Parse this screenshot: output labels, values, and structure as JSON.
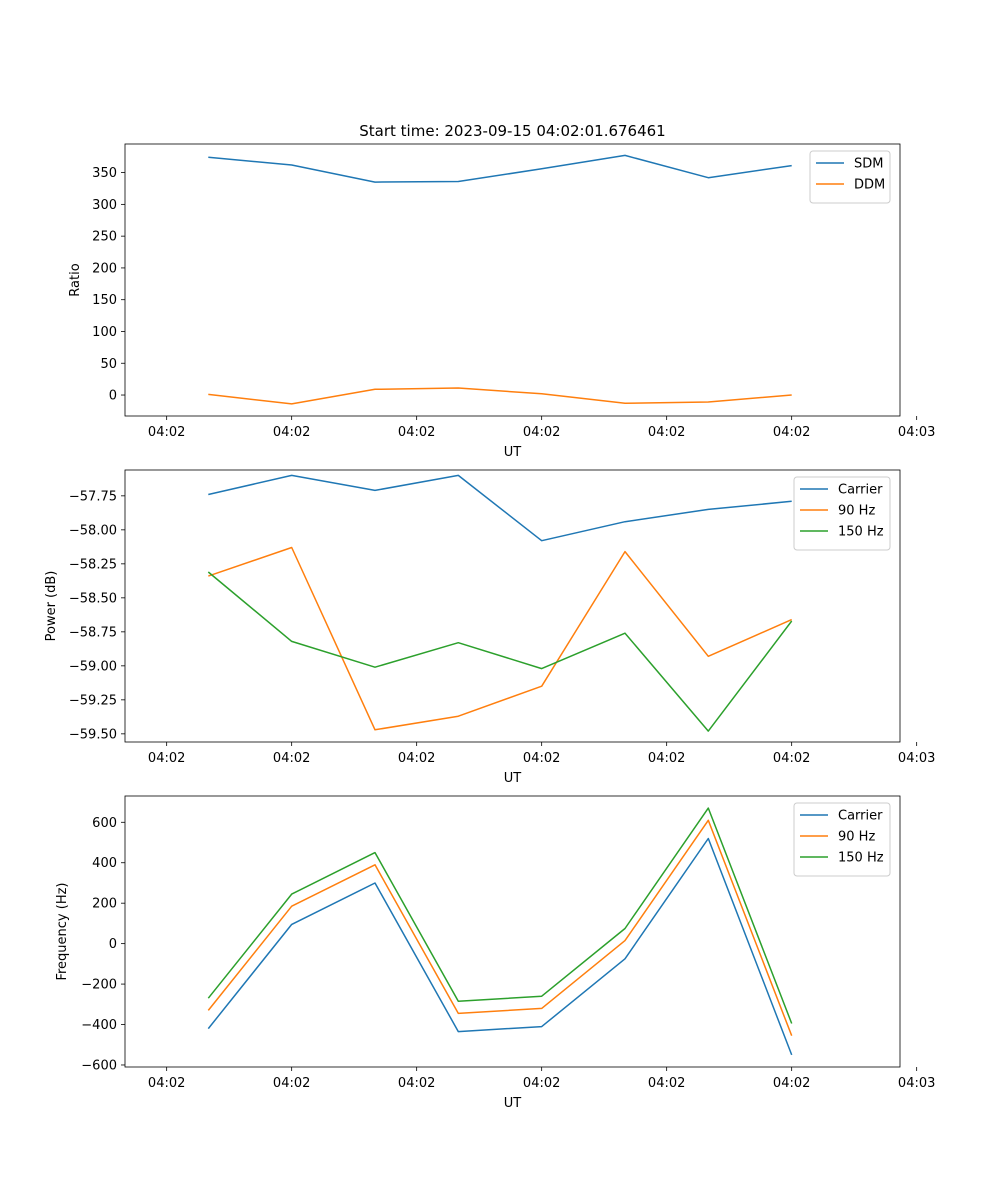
{
  "chart_data": [
    {
      "type": "line",
      "title": "Start time: 2023-09-15 04:02:01.676461",
      "xlabel": "UT",
      "ylabel": "Ratio",
      "x": [
        1,
        2,
        3,
        4,
        5,
        6,
        7,
        8
      ],
      "xlim": [
        0,
        9.3
      ],
      "xticks": [
        0.5,
        2,
        3.5,
        5,
        6.5,
        8,
        9.5
      ],
      "xtick_labels": [
        "04:02",
        "04:02",
        "04:02",
        "04:02",
        "04:02",
        "04:02",
        "04:03"
      ],
      "ylim": [
        -33,
        395
      ],
      "yticks": [
        0,
        50,
        100,
        150,
        200,
        250,
        300,
        350
      ],
      "ytick_labels": [
        "0",
        "50",
        "100",
        "150",
        "200",
        "250",
        "300",
        "350"
      ],
      "legend": "top-right",
      "series": [
        {
          "name": "SDM",
          "color": "#1f77b4",
          "values": [
            374,
            362,
            335,
            336,
            356,
            377,
            342,
            361
          ]
        },
        {
          "name": "DDM",
          "color": "#ff7f0e",
          "values": [
            1,
            -14,
            9,
            11,
            2,
            -13,
            -11,
            0
          ]
        }
      ]
    },
    {
      "type": "line",
      "title": "",
      "xlabel": "UT",
      "ylabel": "Power (dB)",
      "x": [
        1,
        2,
        3,
        4,
        5,
        6,
        7,
        8
      ],
      "xlim": [
        0,
        9.3
      ],
      "xticks": [
        0.5,
        2,
        3.5,
        5,
        6.5,
        8,
        9.5
      ],
      "xtick_labels": [
        "04:02",
        "04:02",
        "04:02",
        "04:02",
        "04:02",
        "04:02",
        "04:03"
      ],
      "ylim": [
        -59.56,
        -57.56
      ],
      "yticks": [
        -57.75,
        -58.0,
        -58.25,
        -58.5,
        -58.75,
        -59.0,
        -59.25,
        -59.5
      ],
      "ytick_labels": [
        "−57.75",
        "−58.00",
        "−58.25",
        "−58.50",
        "−58.75",
        "−59.00",
        "−59.25",
        "−59.50"
      ],
      "legend": "top-right",
      "series": [
        {
          "name": "Carrier",
          "color": "#1f77b4",
          "values": [
            -57.74,
            -57.6,
            -57.71,
            -57.6,
            -58.08,
            -57.94,
            -57.85,
            -57.79
          ]
        },
        {
          "name": "90 Hz",
          "color": "#ff7f0e",
          "values": [
            -58.34,
            -58.13,
            -59.47,
            -59.37,
            -59.15,
            -58.16,
            -58.93,
            -58.66
          ]
        },
        {
          "name": "150 Hz",
          "color": "#2ca02c",
          "values": [
            -58.31,
            -58.82,
            -59.01,
            -58.83,
            -59.02,
            -58.76,
            -59.48,
            -58.67
          ]
        }
      ]
    },
    {
      "type": "line",
      "title": "",
      "xlabel": "UT",
      "ylabel": "Frequency (Hz)",
      "x": [
        1,
        2,
        3,
        4,
        5,
        6,
        7,
        8
      ],
      "xlim": [
        0,
        9.3
      ],
      "xticks": [
        0.5,
        2,
        3.5,
        5,
        6.5,
        8,
        9.5
      ],
      "xtick_labels": [
        "04:02",
        "04:02",
        "04:02",
        "04:02",
        "04:02",
        "04:02",
        "04:03"
      ],
      "ylim": [
        -610,
        730
      ],
      "yticks": [
        -600,
        -400,
        -200,
        0,
        200,
        400,
        600
      ],
      "ytick_labels": [
        "−600",
        "−400",
        "−200",
        "0",
        "200",
        "400",
        "600"
      ],
      "legend": "top-right",
      "series": [
        {
          "name": "Carrier",
          "color": "#1f77b4",
          "values": [
            -420,
            95,
            300,
            -435,
            -410,
            -75,
            520,
            -550
          ]
        },
        {
          "name": "90 Hz",
          "color": "#ff7f0e",
          "values": [
            -330,
            185,
            390,
            -345,
            -320,
            15,
            610,
            -455
          ]
        },
        {
          "name": "150 Hz",
          "color": "#2ca02c",
          "values": [
            -270,
            245,
            450,
            -285,
            -260,
            75,
            670,
            -395
          ]
        }
      ]
    }
  ]
}
